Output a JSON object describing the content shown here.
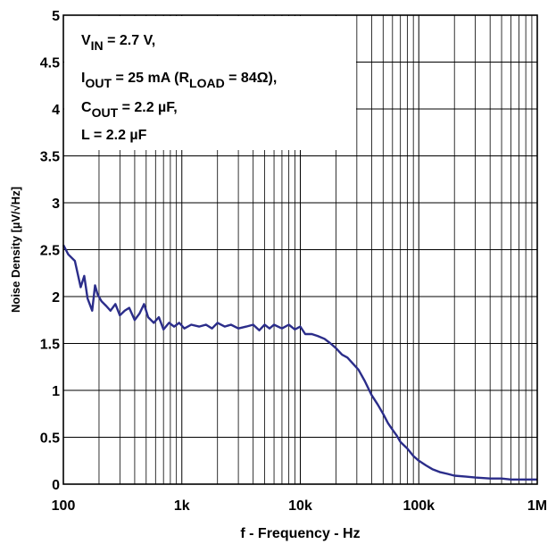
{
  "chart_data": {
    "type": "line",
    "xlabel": "f - Frequency - Hz",
    "ylabel": "Noise Density [µV/√Hz]",
    "x_scale": "log",
    "xlim": [
      100,
      1000000
    ],
    "ylim": [
      0,
      5
    ],
    "x_ticks": [
      {
        "value": 100,
        "label": "100"
      },
      {
        "value": 1000,
        "label": "1k"
      },
      {
        "value": 10000,
        "label": "10k"
      },
      {
        "value": 100000,
        "label": "100k"
      },
      {
        "value": 1000000,
        "label": "1M"
      }
    ],
    "y_ticks": [
      {
        "value": 0,
        "label": "0"
      },
      {
        "value": 0.5,
        "label": "0.5"
      },
      {
        "value": 1,
        "label": "1"
      },
      {
        "value": 1.5,
        "label": "1.5"
      },
      {
        "value": 2,
        "label": "2"
      },
      {
        "value": 2.5,
        "label": "2.5"
      },
      {
        "value": 3,
        "label": "3"
      },
      {
        "value": 3.5,
        "label": "3.5"
      },
      {
        "value": 4,
        "label": "4"
      },
      {
        "value": 4.5,
        "label": "4.5"
      },
      {
        "value": 5,
        "label": "5"
      }
    ],
    "grid": true,
    "conditions": [
      {
        "main": "V",
        "sub": "IN",
        "rest": " = 2.7 V,"
      },
      {
        "main": "I",
        "sub": "OUT",
        "rest": " = 25 mA (R",
        "sub2": "LOAD",
        "rest2": " = 84Ω),"
      },
      {
        "main": "C",
        "sub": "OUT",
        "rest": " = 2.2 µF,"
      },
      {
        "main": "L = 2.2 µF",
        "sub": "",
        "rest": ""
      }
    ],
    "series": [
      {
        "color": "#2b2d8a",
        "x": [
          100,
          110,
          125,
          140,
          150,
          160,
          175,
          185,
          195,
          210,
          230,
          250,
          275,
          300,
          330,
          360,
          400,
          440,
          480,
          520,
          580,
          640,
          700,
          780,
          860,
          950,
          1050,
          1200,
          1400,
          1600,
          1800,
          2000,
          2300,
          2600,
          3000,
          3500,
          4000,
          4500,
          5000,
          5500,
          6000,
          7000,
          8000,
          9000,
          10000,
          11000,
          12500,
          14000,
          16000,
          18000,
          20000,
          22500,
          25000,
          28000,
          31000,
          35000,
          40000,
          45000,
          50000,
          55000,
          60000,
          65000,
          70000,
          80000,
          90000,
          100000,
          115000,
          130000,
          150000,
          175000,
          200000,
          250000,
          300000,
          400000,
          500000,
          600000,
          700000,
          800000,
          1000000
        ],
        "y": [
          2.55,
          2.45,
          2.38,
          2.1,
          2.22,
          1.98,
          1.85,
          2.12,
          2.02,
          1.95,
          1.9,
          1.85,
          1.92,
          1.8,
          1.85,
          1.88,
          1.75,
          1.82,
          1.92,
          1.78,
          1.72,
          1.78,
          1.65,
          1.72,
          1.68,
          1.72,
          1.66,
          1.7,
          1.68,
          1.7,
          1.66,
          1.72,
          1.68,
          1.7,
          1.66,
          1.68,
          1.7,
          1.64,
          1.7,
          1.66,
          1.7,
          1.66,
          1.7,
          1.65,
          1.68,
          1.6,
          1.6,
          1.58,
          1.55,
          1.5,
          1.45,
          1.38,
          1.35,
          1.28,
          1.22,
          1.1,
          0.95,
          0.85,
          0.75,
          0.65,
          0.58,
          0.52,
          0.45,
          0.38,
          0.3,
          0.25,
          0.2,
          0.16,
          0.13,
          0.11,
          0.09,
          0.08,
          0.07,
          0.06,
          0.06,
          0.05,
          0.05,
          0.05,
          0.05
        ]
      }
    ]
  }
}
